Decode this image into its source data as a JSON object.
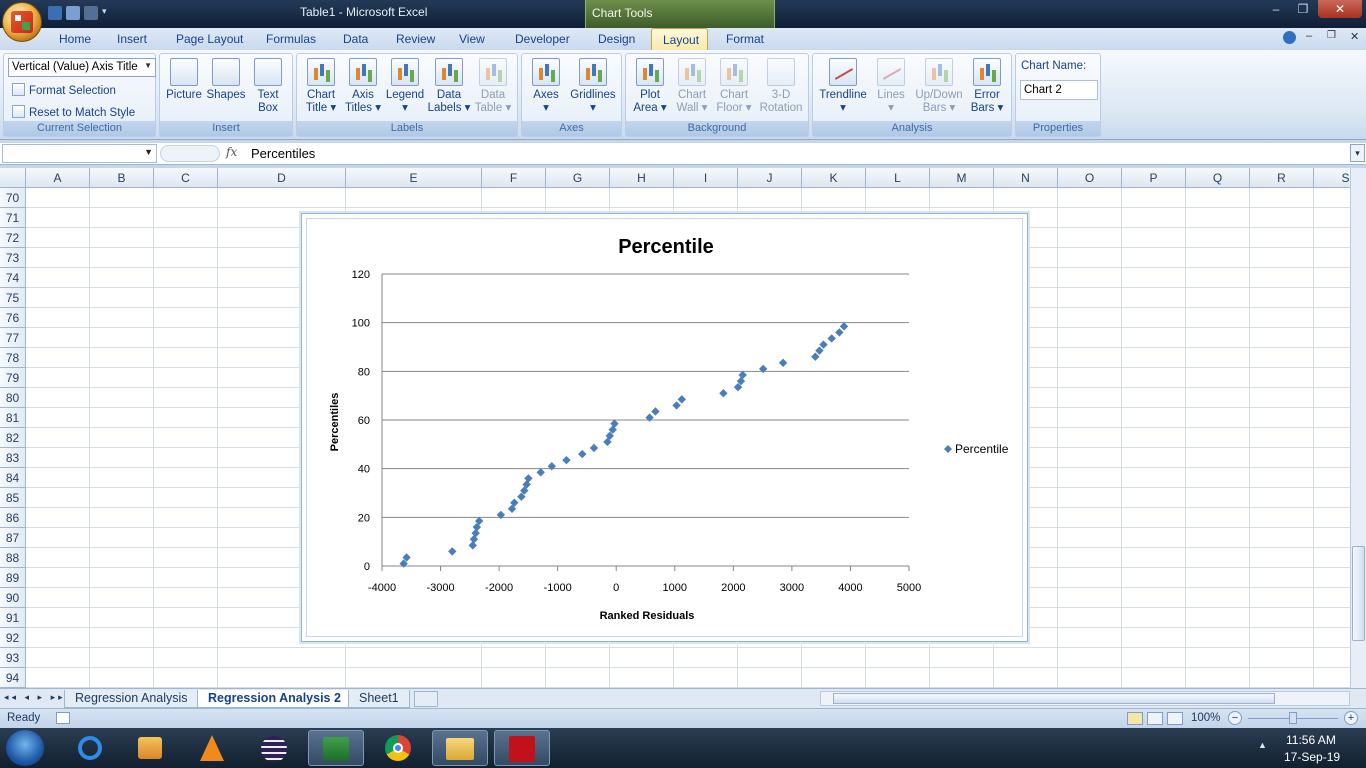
{
  "window": {
    "title": "Table1 - Microsoft Excel",
    "context_tab_group": "Chart Tools",
    "controls": [
      "–",
      "❐",
      "✕"
    ]
  },
  "tabs": [
    "Home",
    "Insert",
    "Page Layout",
    "Formulas",
    "Data",
    "Review",
    "View",
    "Developer",
    "Design",
    "Layout",
    "Format"
  ],
  "active_tab": "Layout",
  "ribbon": {
    "current_selection": {
      "combo_value": "Vertical (Value) Axis Title",
      "format_selection": "Format Selection",
      "reset_style": "Reset to Match Style",
      "label": "Current Selection"
    },
    "insert": {
      "label": "Insert",
      "picture": "Picture",
      "shapes": "Shapes",
      "text_box_1": "Text",
      "text_box_2": "Box"
    },
    "labels": {
      "label": "Labels",
      "chart_title_1": "Chart",
      "chart_title_2": "Title ▾",
      "axis_titles_1": "Axis",
      "axis_titles_2": "Titles ▾",
      "legend_1": "Legend",
      "legend_2": "▾",
      "data_labels_1": "Data",
      "data_labels_2": "Labels ▾",
      "data_table_1": "Data",
      "data_table_2": "Table ▾"
    },
    "axes": {
      "label": "Axes",
      "axes_1": "Axes",
      "axes_2": "▾",
      "gridlines_1": "Gridlines",
      "gridlines_2": "▾"
    },
    "background": {
      "label": "Background",
      "plot_area_1": "Plot",
      "plot_area_2": "Area ▾",
      "chart_wall_1": "Chart",
      "chart_wall_2": "Wall ▾",
      "chart_floor_1": "Chart",
      "chart_floor_2": "Floor ▾",
      "rotation_1": "3-D",
      "rotation_2": "Rotation"
    },
    "analysis": {
      "label": "Analysis",
      "trendline_1": "Trendline",
      "trendline_2": "▾",
      "lines_1": "Lines",
      "lines_2": "▾",
      "updown_1": "Up/Down",
      "updown_2": "Bars ▾",
      "error_1": "Error",
      "error_2": "Bars ▾"
    },
    "properties": {
      "label": "Properties",
      "chart_name_label": "Chart Name:",
      "chart_name_value": "Chart 2"
    }
  },
  "formula_bar": {
    "fx": "fx",
    "value": "Percentiles"
  },
  "columns": [
    "A",
    "B",
    "C",
    "D",
    "E",
    "F",
    "G",
    "H",
    "I",
    "J",
    "K",
    "L",
    "M",
    "N",
    "O",
    "P",
    "Q",
    "R",
    "S"
  ],
  "rows": [
    "70",
    "71",
    "72",
    "73",
    "74",
    "75",
    "76",
    "77",
    "78",
    "79",
    "80",
    "81",
    "82",
    "83",
    "84",
    "85",
    "86",
    "87",
    "88",
    "89",
    "90",
    "91",
    "92",
    "93",
    "94"
  ],
  "sheet_tabs": [
    "Regression Analysis",
    "Regression Analysis 2",
    "Sheet1"
  ],
  "active_sheet": "Regression Analysis 2",
  "status": {
    "ready": "Ready",
    "zoom": "100%"
  },
  "clock": {
    "time": "11:56 AM",
    "date": "17-Sep-19"
  },
  "colors": {
    "marker": "#4a7ebb",
    "context_green": "#4e7032"
  },
  "chart_data": {
    "type": "scatter",
    "title": "Percentile",
    "xlabel": "Ranked Residuals",
    "ylabel": "Percentiles",
    "xlim": [
      -4000,
      5000
    ],
    "ylim": [
      0,
      120
    ],
    "xticks": [
      "-4000",
      "-3000",
      "-2000",
      "-1000",
      "0",
      "1000",
      "2000",
      "3000",
      "4000",
      "5000"
    ],
    "yticks": [
      "0",
      "20",
      "40",
      "60",
      "80",
      "100",
      "120"
    ],
    "grid": "horizontal major",
    "legend": "right",
    "series": [
      {
        "name": "Percentile",
        "marker": "diamond",
        "points": [
          [
            -3630,
            1
          ],
          [
            -3580,
            3.5
          ],
          [
            -2800,
            6
          ],
          [
            -2450,
            8.5
          ],
          [
            -2430,
            11
          ],
          [
            -2400,
            13.5
          ],
          [
            -2380,
            16
          ],
          [
            -2340,
            18.5
          ],
          [
            -1970,
            21
          ],
          [
            -1780,
            23.5
          ],
          [
            -1740,
            26
          ],
          [
            -1620,
            28.5
          ],
          [
            -1570,
            31
          ],
          [
            -1530,
            33.5
          ],
          [
            -1500,
            36
          ],
          [
            -1290,
            38.5
          ],
          [
            -1100,
            41
          ],
          [
            -850,
            43.5
          ],
          [
            -580,
            46
          ],
          [
            -380,
            48.5
          ],
          [
            -150,
            51
          ],
          [
            -110,
            53.5
          ],
          [
            -60,
            56
          ],
          [
            -30,
            58.5
          ],
          [
            570,
            61
          ],
          [
            670,
            63.5
          ],
          [
            1030,
            66
          ],
          [
            1120,
            68.5
          ],
          [
            1830,
            71
          ],
          [
            2080,
            73.5
          ],
          [
            2130,
            76
          ],
          [
            2160,
            78.5
          ],
          [
            2510,
            81
          ],
          [
            2850,
            83.5
          ],
          [
            3400,
            86
          ],
          [
            3470,
            88.5
          ],
          [
            3540,
            91
          ],
          [
            3680,
            93.5
          ],
          [
            3810,
            96
          ],
          [
            3890,
            98.5
          ]
        ]
      }
    ]
  }
}
